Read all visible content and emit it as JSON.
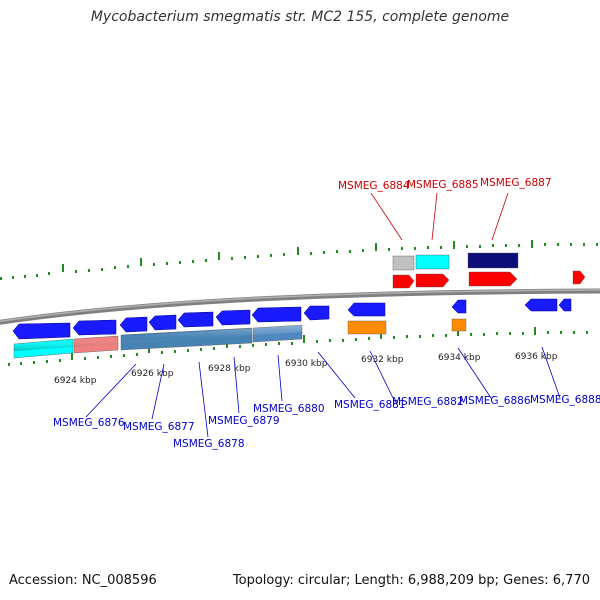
{
  "title": "Mycobacterium smegmatis str. MC2 155, complete genome",
  "footer": {
    "accession": "Accession: NC_008596",
    "info": "Topology: circular; Length: 6,988,209 bp; Genes: 6,770"
  },
  "scale_labels": [
    "6924 kbp",
    "6926 kbp",
    "6928 kbp",
    "6930 kbp",
    "6932 kbp",
    "6934 kbp",
    "6936 kbp"
  ],
  "gene_labels_forward": [
    "MSMEG_6884",
    "MSMEG_6885",
    "MSMEG_6887"
  ],
  "gene_labels_reverse": [
    "MSMEG_6876",
    "MSMEG_6877",
    "MSMEG_6878",
    "MSMEG_6879",
    "MSMEG_6880",
    "MSMEG_6881",
    "MSMEG_6882",
    "MSMEG_6886",
    "MSMEG_6888"
  ],
  "colors": {
    "backbone": "#808080",
    "forward_label": "#cc0000",
    "reverse_label": "#0000cc",
    "gene_blue": "#1a1aff",
    "gene_red": "#ff0000",
    "gene_cyan": "#00ffff",
    "gene_navy": "#0d0d7a",
    "gene_orange": "#ff8c00",
    "gene_gray": "#c0c0c0",
    "gene_salmon": "#f08080",
    "gene_steel": "#4682b4",
    "tick_green": "#228b22"
  }
}
